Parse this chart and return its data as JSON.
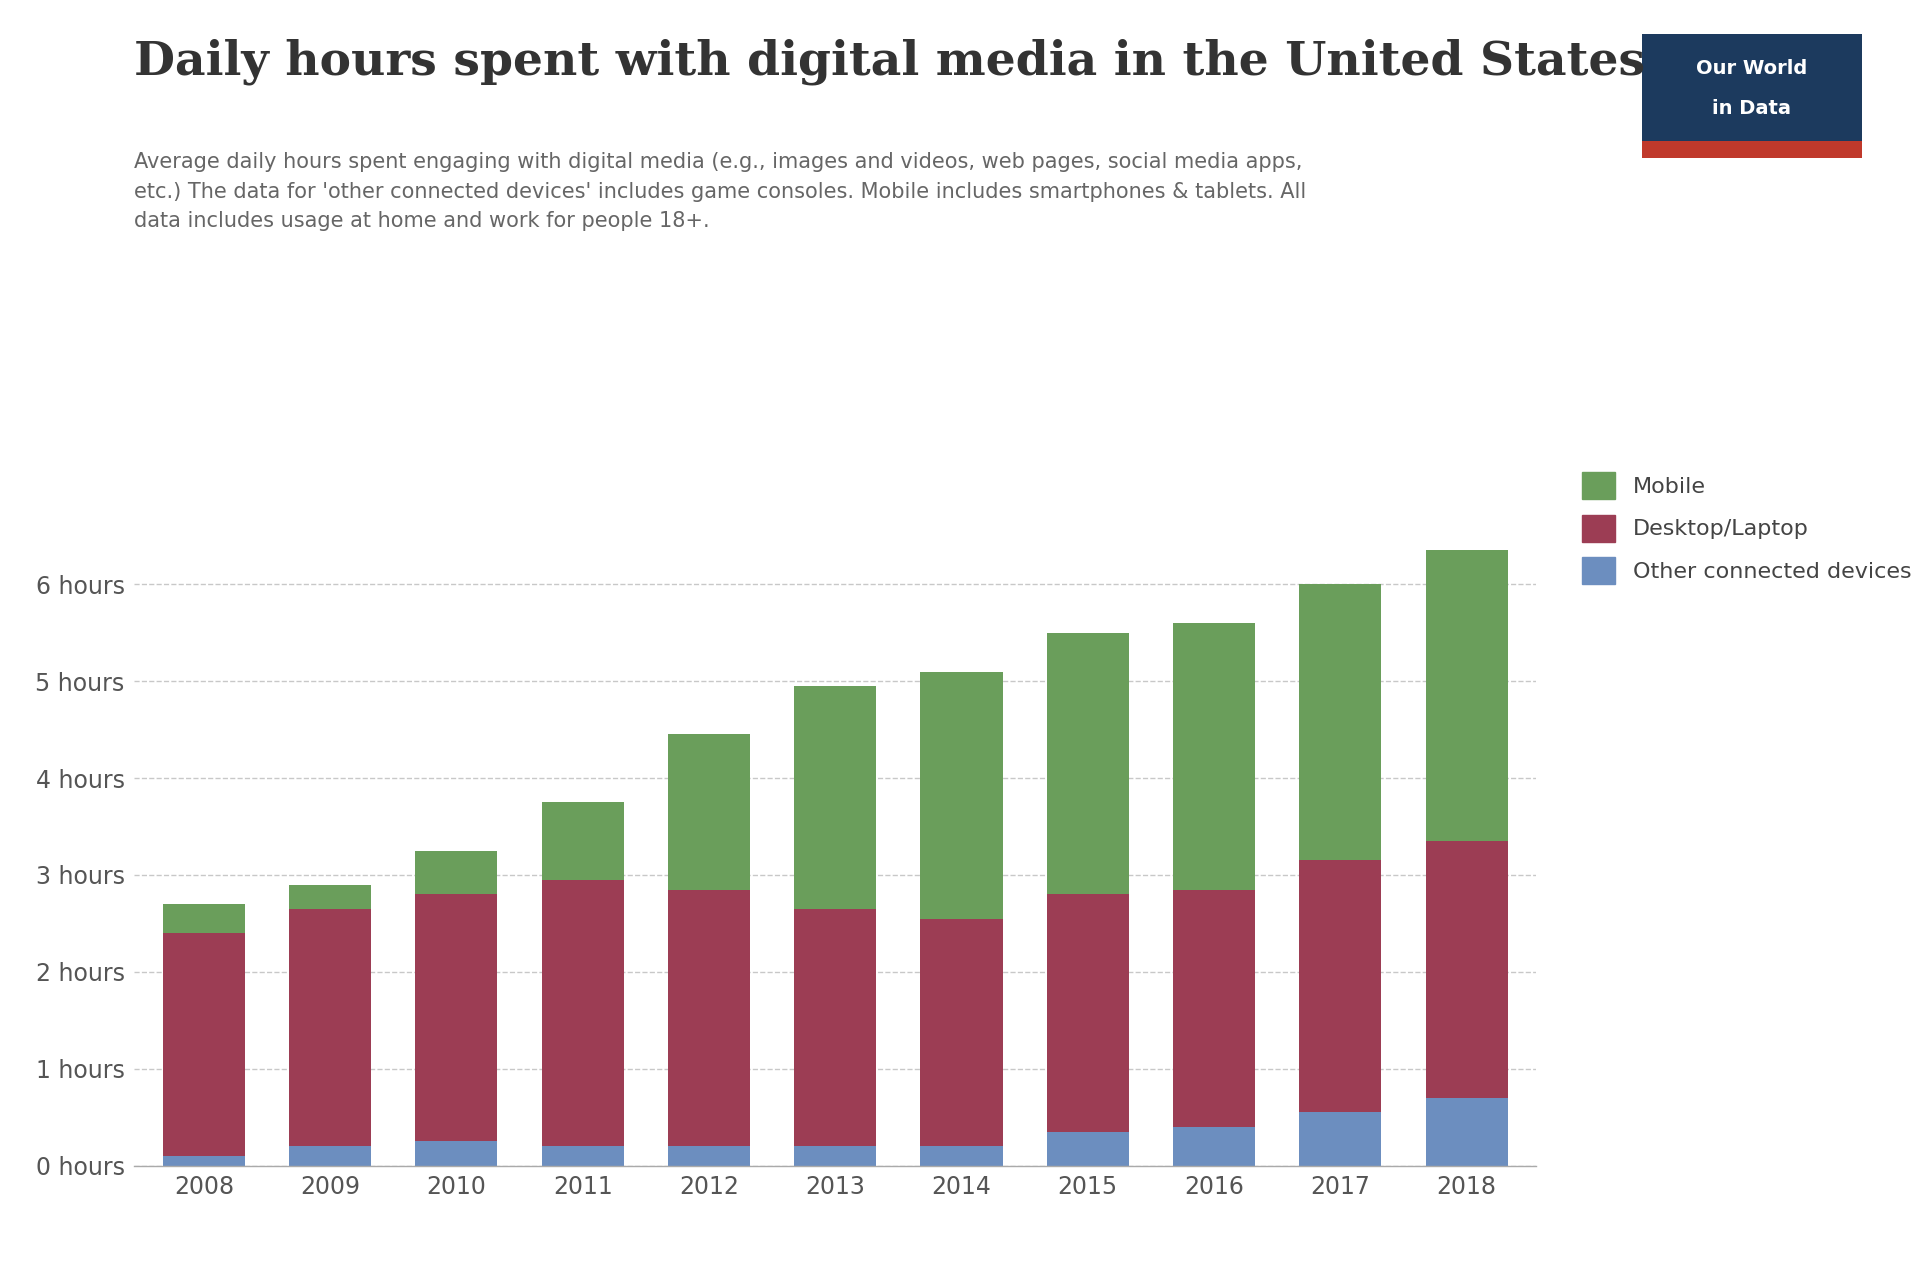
{
  "years": [
    2008,
    2009,
    2010,
    2011,
    2012,
    2013,
    2014,
    2015,
    2016,
    2017,
    2018
  ],
  "other_connected": [
    0.1,
    0.2,
    0.25,
    0.2,
    0.2,
    0.2,
    0.2,
    0.35,
    0.4,
    0.55,
    0.7
  ],
  "desktop_laptop": [
    2.3,
    2.45,
    2.55,
    2.75,
    2.65,
    2.45,
    2.35,
    2.45,
    2.45,
    2.6,
    2.65
  ],
  "mobile": [
    0.3,
    0.25,
    0.45,
    0.8,
    1.6,
    2.3,
    2.55,
    2.7,
    2.75,
    2.85,
    3.0
  ],
  "color_other": "#6c8ebf",
  "color_desktop": "#9c3d54",
  "color_mobile": "#6a9e5b",
  "title": "Daily hours spent with digital media in the United States",
  "subtitle": "Average daily hours spent engaging with digital media (e.g., images and videos, web pages, social media apps,\netc.) The data for 'other connected devices' includes game consoles. Mobile includes smartphones & tablets. All\ndata includes usage at home and work for people 18+.",
  "ytick_labels": [
    "0 hours",
    "1 hours",
    "2 hours",
    "3 hours",
    "4 hours",
    "5 hours",
    "6 hours"
  ],
  "ytick_values": [
    0,
    1,
    2,
    3,
    4,
    5,
    6
  ],
  "ylim": [
    0,
    6.8
  ],
  "legend_labels": [
    "Mobile",
    "Desktop/Laptop",
    "Other connected devices"
  ],
  "bg_color": "#ffffff",
  "owid_box_color": "#1c3a5e",
  "owid_red": "#c0392b",
  "title_fontsize": 34,
  "subtitle_fontsize": 15,
  "tick_fontsize": 17,
  "legend_fontsize": 16
}
